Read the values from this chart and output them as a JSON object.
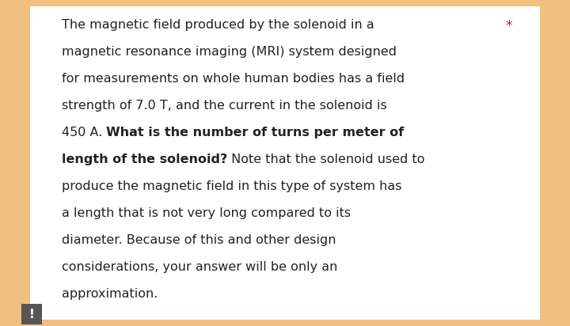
{
  "background_outer": "#f0c080",
  "background_inner": "#ffffff",
  "text_color": "#222222",
  "star_color": "#cc2222",
  "exclaim_bg": "#555555",
  "exclaim_color": "#ffffff",
  "lines": [
    {
      "parts": [
        {
          "text": "The magnetic field produced by the solenoid in a",
          "bold": false
        }
      ],
      "has_star": true
    },
    {
      "parts": [
        {
          "text": "magnetic resonance imaging (MRI) system designed",
          "bold": false
        }
      ],
      "has_star": false
    },
    {
      "parts": [
        {
          "text": "for measurements on whole human bodies has a field",
          "bold": false
        }
      ],
      "has_star": false
    },
    {
      "parts": [
        {
          "text": "strength of 7.0 T, and the current in the solenoid is",
          "bold": false
        }
      ],
      "has_star": false
    },
    {
      "parts": [
        {
          "text": "450 A. ",
          "bold": false
        },
        {
          "text": "What is the number of turns per meter of",
          "bold": true
        }
      ],
      "has_star": false
    },
    {
      "parts": [
        {
          "text": "length of the solenoid?",
          "bold": true
        },
        {
          "text": " Note that the solenoid used to",
          "bold": false
        }
      ],
      "has_star": false
    },
    {
      "parts": [
        {
          "text": "produce the magnetic field in this type of system has",
          "bold": false
        }
      ],
      "has_star": false
    },
    {
      "parts": [
        {
          "text": "a length that is not very long compared to its",
          "bold": false
        }
      ],
      "has_star": false
    },
    {
      "parts": [
        {
          "text": "diameter. Because of this and other design",
          "bold": false
        }
      ],
      "has_star": false
    },
    {
      "parts": [
        {
          "text": "considerations, your answer will be only an",
          "bold": false
        }
      ],
      "has_star": false
    },
    {
      "parts": [
        {
          "text": "approximation.",
          "bold": false
        }
      ],
      "has_star": false
    }
  ],
  "font_size": 11.5,
  "star_char": "*",
  "exclaim_char": "!"
}
